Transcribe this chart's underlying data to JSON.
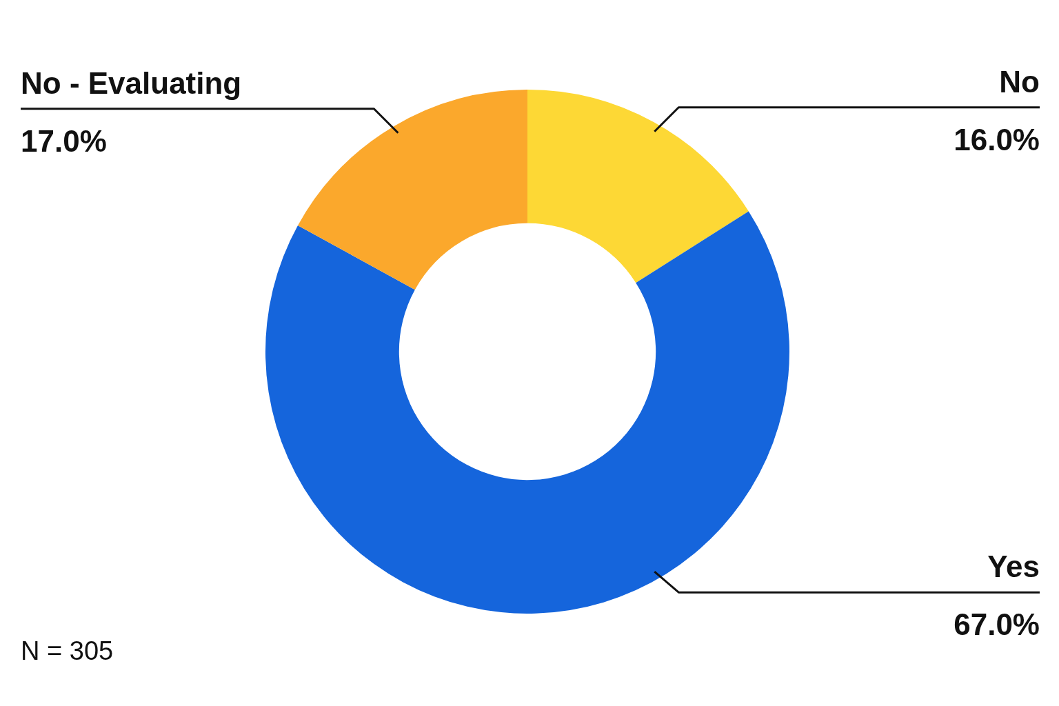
{
  "chart_data": {
    "type": "donut",
    "categories": [
      "No",
      "Yes",
      "No - Evaluating"
    ],
    "values": [
      16,
      67,
      17
    ],
    "colors": [
      "#fdd835",
      "#1565dc",
      "#fba82c"
    ],
    "value_labels": [
      "16.0%",
      "67.0%",
      "17.0%"
    ],
    "legend": false,
    "annotations": [
      "N = 305"
    ]
  }
}
